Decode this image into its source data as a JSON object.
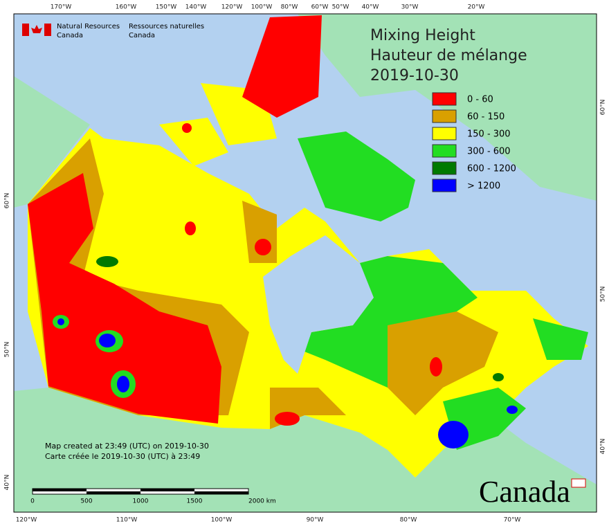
{
  "header": {
    "agency_en": "Natural Resources",
    "country_en": "Canada",
    "agency_fr": "Ressources naturelles",
    "country_fr": "Canada"
  },
  "legend": {
    "title_en": "Mixing Height",
    "title_fr": "Hauteur de mélange",
    "date": "2019-10-30",
    "items": [
      {
        "label": "0 - 60",
        "color": "#ff0000"
      },
      {
        "label": "60 - 150",
        "color": "#d9a000"
      },
      {
        "label": "150 - 300",
        "color": "#ffff00"
      },
      {
        "label": "300 - 600",
        "color": "#22dd22"
      },
      {
        "label": "600 - 1200",
        "color": "#007a00"
      },
      {
        "label": "> 1200",
        "color": "#0000ff"
      }
    ]
  },
  "graticule": {
    "top": [
      "170°W",
      "160°W",
      "150°W",
      "140°W",
      "120°W",
      "100°W",
      "80°W",
      "60°W",
      "50°W",
      "40°W",
      "30°W",
      "20°W"
    ],
    "bottom": [
      "120°W",
      "110°W",
      "100°W",
      "90°W",
      "80°W",
      "70°W"
    ],
    "left": [
      "60°N",
      "50°N",
      "40°N"
    ],
    "right": [
      "60°N",
      "50°N",
      "40°N"
    ]
  },
  "footnote": {
    "en": "Map created at 23:49 (UTC) on 2019-10-30",
    "fr": "Carte créée le 2019-10-30 (UTC) à 23:49"
  },
  "scale_bar": {
    "labels": [
      "0",
      "500",
      "1000",
      "1500",
      "2000 km"
    ]
  },
  "wordmark": "Canada"
}
